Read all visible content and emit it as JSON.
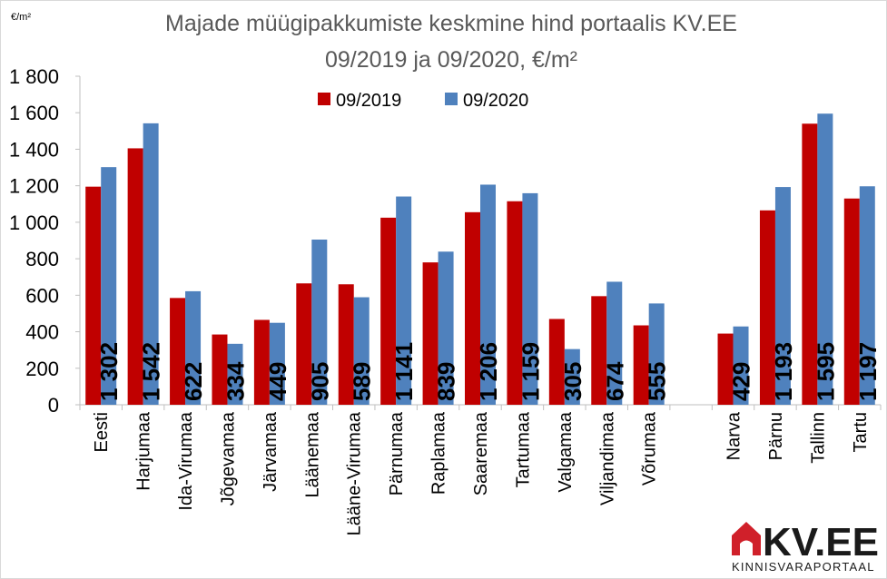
{
  "chart_data": {
    "type": "bar",
    "title_line1": "Majade müügipakkumiste keskmine hind portaalis KV.EE",
    "title_line2": "09/2019 ja 09/2020, €/m²",
    "unit_label": "€/m²",
    "ylim": [
      0,
      1800
    ],
    "ytick_step": 200,
    "ytick_labels": [
      "0",
      "200",
      "400",
      "600",
      "800",
      "1 000",
      "1 200",
      "1 400",
      "1 600",
      "1 800"
    ],
    "legend_position": "top-center",
    "grid": false,
    "categories": [
      "Eesti",
      "Harjumaa",
      "Ida-Virumaa",
      "Jõgevamaa",
      "Järvamaa",
      "Läänemaa",
      "Lääne-Virumaa",
      "Pärnumaa",
      "Raplamaa",
      "Saaremaa",
      "Tartumaa",
      "Valgamaa",
      "Viljandimaa",
      "Võrumaa",
      "",
      "Narva",
      "Pärnu",
      "Tallinn",
      "Tartu"
    ],
    "series": [
      {
        "name": "09/2019",
        "color": "#c00000",
        "values": [
          1195,
          1405,
          585,
          385,
          465,
          665,
          660,
          1025,
          780,
          1055,
          1115,
          470,
          595,
          435,
          null,
          390,
          1065,
          1540,
          1130
        ]
      },
      {
        "name": "09/2020",
        "color": "#4f81bd",
        "values": [
          1302,
          1542,
          622,
          334,
          449,
          905,
          589,
          1141,
          839,
          1206,
          1159,
          305,
          674,
          555,
          null,
          429,
          1193,
          1595,
          1197
        ],
        "data_labels": [
          "1 302",
          "1 542",
          "622",
          "334",
          "449",
          "905",
          "589",
          "1 141",
          "839",
          "1 206",
          "1 159",
          "305",
          "674",
          "555",
          "",
          "429",
          "1 193",
          "1 595",
          "1 197"
        ]
      }
    ]
  },
  "logo": {
    "brand": "KV.EE",
    "tagline": "KINNISVARAPORTAAL",
    "color": "#d0202a"
  }
}
